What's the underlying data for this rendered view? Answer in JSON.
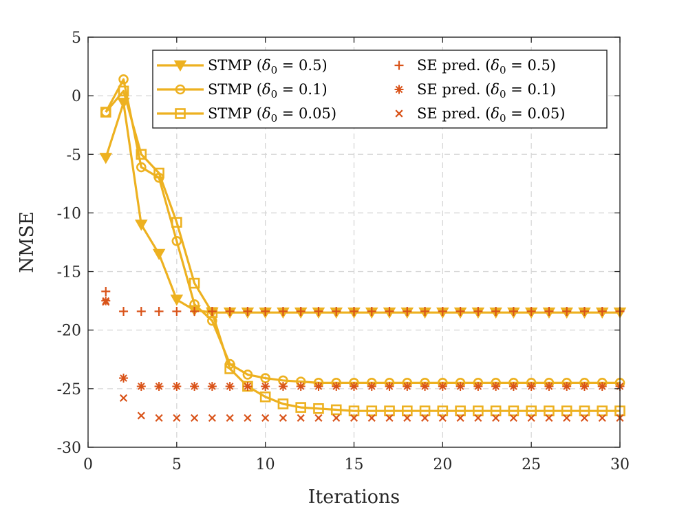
{
  "chart_data": {
    "type": "line",
    "title": "",
    "xlabel": "Iterations",
    "ylabel": "NMSE",
    "xlim": [
      0,
      30
    ],
    "ylim": [
      -30,
      5
    ],
    "xticks": [
      0,
      5,
      10,
      15,
      20,
      25,
      30
    ],
    "yticks": [
      5,
      0,
      -5,
      -10,
      -15,
      -20,
      -25,
      -30
    ],
    "xtick_labels": [
      "0",
      "5",
      "10",
      "15",
      "20",
      "25",
      "30"
    ],
    "ytick_labels": [
      "5",
      "0",
      "-5",
      "-10",
      "-15",
      "-20",
      "-25",
      "-30"
    ],
    "grid": true,
    "legend_position": "top-right",
    "series": [
      {
        "name": "STMP (δ0 = 0.5)",
        "legend_main": "STMP",
        "legend_param": "δ",
        "legend_sub": "0",
        "legend_value": "0.5",
        "kind": "line",
        "marker": "triangle-down",
        "color": "#EDB120",
        "x": [
          1,
          2,
          3,
          4,
          5,
          6,
          7,
          8,
          9,
          10,
          11,
          12,
          13,
          14,
          15,
          16,
          17,
          18,
          19,
          20,
          21,
          22,
          23,
          24,
          25,
          26,
          27,
          28,
          29,
          30
        ],
        "values": [
          -5.3,
          -0.6,
          -11.0,
          -13.5,
          -17.4,
          -18.3,
          -18.5,
          -18.5,
          -18.5,
          -18.5,
          -18.5,
          -18.5,
          -18.5,
          -18.5,
          -18.5,
          -18.5,
          -18.5,
          -18.5,
          -18.5,
          -18.5,
          -18.5,
          -18.5,
          -18.5,
          -18.5,
          -18.5,
          -18.5,
          -18.5,
          -18.5,
          -18.5,
          -18.5
        ]
      },
      {
        "name": "STMP (δ0 = 0.1)",
        "legend_main": "STMP",
        "legend_param": "δ",
        "legend_sub": "0",
        "legend_value": "0.1",
        "kind": "line",
        "marker": "circle",
        "color": "#EDB120",
        "x": [
          1,
          2,
          3,
          4,
          5,
          6,
          7,
          8,
          9,
          10,
          11,
          12,
          13,
          14,
          15,
          16,
          17,
          18,
          19,
          20,
          21,
          22,
          23,
          24,
          25,
          26,
          27,
          28,
          29,
          30
        ],
        "values": [
          -1.4,
          1.4,
          -6.1,
          -7.0,
          -12.4,
          -17.8,
          -19.2,
          -22.9,
          -23.8,
          -24.1,
          -24.3,
          -24.4,
          -24.5,
          -24.5,
          -24.5,
          -24.5,
          -24.5,
          -24.5,
          -24.5,
          -24.5,
          -24.5,
          -24.5,
          -24.5,
          -24.5,
          -24.5,
          -24.5,
          -24.5,
          -24.5,
          -24.5,
          -24.5
        ]
      },
      {
        "name": "STMP (δ0 = 0.05)",
        "legend_main": "STMP",
        "legend_param": "δ",
        "legend_sub": "0",
        "legend_value": "0.05",
        "kind": "line",
        "marker": "square",
        "color": "#EDB120",
        "x": [
          1,
          2,
          3,
          4,
          5,
          6,
          7,
          8,
          9,
          10,
          11,
          12,
          13,
          14,
          15,
          16,
          17,
          18,
          19,
          20,
          21,
          22,
          23,
          24,
          25,
          26,
          27,
          28,
          29,
          30
        ],
        "values": [
          -1.4,
          0.4,
          -5.0,
          -6.6,
          -10.8,
          -16.0,
          -18.5,
          -23.3,
          -24.8,
          -25.7,
          -26.3,
          -26.6,
          -26.7,
          -26.8,
          -26.9,
          -26.9,
          -26.9,
          -26.9,
          -26.9,
          -26.9,
          -26.9,
          -26.9,
          -26.9,
          -26.9,
          -26.9,
          -26.9,
          -26.9,
          -26.9,
          -26.9,
          -26.9
        ]
      },
      {
        "name": "SE pred. (δ0 = 0.5)",
        "legend_main": "SE pred.",
        "legend_param": "δ",
        "legend_sub": "0",
        "legend_value": "0.5",
        "kind": "marker",
        "marker": "plus",
        "color": "#D95319",
        "x": [
          1,
          2,
          3,
          4,
          5,
          6,
          7,
          8,
          9,
          10,
          11,
          12,
          13,
          14,
          15,
          16,
          17,
          18,
          19,
          20,
          21,
          22,
          23,
          24,
          25,
          26,
          27,
          28,
          29,
          30
        ],
        "values": [
          -16.7,
          -18.4,
          -18.4,
          -18.4,
          -18.4,
          -18.4,
          -18.4,
          -18.4,
          -18.4,
          -18.4,
          -18.4,
          -18.4,
          -18.4,
          -18.4,
          -18.4,
          -18.4,
          -18.4,
          -18.4,
          -18.4,
          -18.4,
          -18.4,
          -18.4,
          -18.4,
          -18.4,
          -18.4,
          -18.4,
          -18.4,
          -18.4,
          -18.4,
          -18.4
        ]
      },
      {
        "name": "SE pred. (δ0 = 0.1)",
        "legend_main": "SE pred.",
        "legend_param": "δ",
        "legend_sub": "0",
        "legend_value": "0.1",
        "kind": "marker",
        "marker": "asterisk",
        "color": "#D95319",
        "x": [
          1,
          2,
          3,
          4,
          5,
          6,
          7,
          8,
          9,
          10,
          11,
          12,
          13,
          14,
          15,
          16,
          17,
          18,
          19,
          20,
          21,
          22,
          23,
          24,
          25,
          26,
          27,
          28,
          29,
          30
        ],
        "values": [
          -17.5,
          -24.1,
          -24.8,
          -24.8,
          -24.8,
          -24.8,
          -24.8,
          -24.8,
          -24.8,
          -24.8,
          -24.8,
          -24.8,
          -24.8,
          -24.8,
          -24.8,
          -24.8,
          -24.8,
          -24.8,
          -24.8,
          -24.8,
          -24.8,
          -24.8,
          -24.8,
          -24.8,
          -24.8,
          -24.8,
          -24.8,
          -24.8,
          -24.8,
          -24.8
        ]
      },
      {
        "name": "SE pred. (δ0 = 0.05)",
        "legend_main": "SE pred.",
        "legend_param": "δ",
        "legend_sub": "0",
        "legend_value": "0.05",
        "kind": "marker",
        "marker": "cross",
        "color": "#D95319",
        "x": [
          1,
          2,
          3,
          4,
          5,
          6,
          7,
          8,
          9,
          10,
          11,
          12,
          13,
          14,
          15,
          16,
          17,
          18,
          19,
          20,
          21,
          22,
          23,
          24,
          25,
          26,
          27,
          28,
          29,
          30
        ],
        "values": [
          -17.6,
          -25.8,
          -27.3,
          -27.5,
          -27.5,
          -27.5,
          -27.5,
          -27.5,
          -27.5,
          -27.5,
          -27.5,
          -27.5,
          -27.5,
          -27.5,
          -27.5,
          -27.5,
          -27.5,
          -27.5,
          -27.5,
          -27.5,
          -27.5,
          -27.5,
          -27.5,
          -27.5,
          -27.5,
          -27.5,
          -27.5,
          -27.5,
          -27.5,
          -27.5
        ]
      }
    ]
  }
}
